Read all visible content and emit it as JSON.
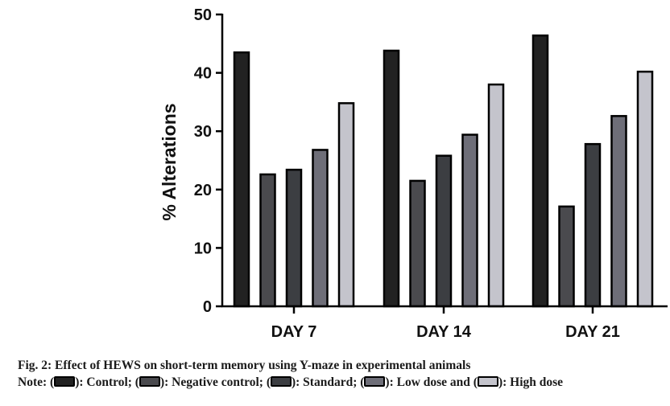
{
  "chart_data": {
    "type": "bar",
    "ylabel": "% Alterations",
    "xlabel": "",
    "ylim": [
      0,
      50
    ],
    "yticks": [
      0,
      10,
      20,
      30,
      40,
      50
    ],
    "categories": [
      "DAY 7",
      "DAY 14",
      "DAY 21"
    ],
    "series": [
      {
        "name": "Control",
        "color": "#222222",
        "values": [
          43.5,
          43.8,
          46.4
        ]
      },
      {
        "name": "Negative control",
        "color": "#4a4a4e",
        "values": [
          22.6,
          21.5,
          17.1
        ]
      },
      {
        "name": "Standard",
        "color": "#3c3e42",
        "values": [
          23.4,
          25.8,
          27.8
        ]
      },
      {
        "name": "Low dose",
        "color": "#6e6e78",
        "values": [
          26.8,
          29.4,
          32.6
        ]
      },
      {
        "name": "High dose",
        "color": "#c4c4cc",
        "values": [
          34.8,
          38.0,
          40.2
        ]
      }
    ],
    "grid": false,
    "legend": "caption-below"
  },
  "caption": {
    "title": "Fig. 2: Effect of HEWS on short-term memory using Y-maze in experimental animals",
    "note_prefix": "Note: (",
    "control_text": "): Control; (",
    "negative_text": "): Negative control; (",
    "standard_text": "): Standard; (",
    "low_text": "): Low dose and (",
    "high_text": "): High dose"
  }
}
